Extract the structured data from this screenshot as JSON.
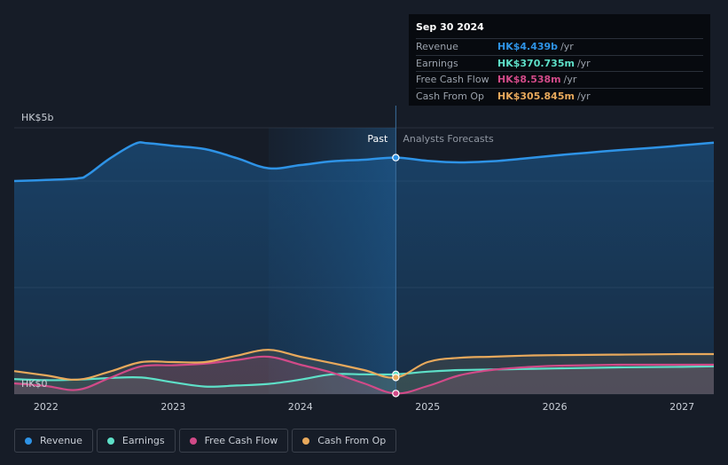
{
  "tooltip": {
    "date": "Sep 30 2024",
    "rows": [
      {
        "label": "Revenue",
        "value": "HK$4.439b",
        "unit": "/yr",
        "color": "#2e93e6"
      },
      {
        "label": "Earnings",
        "value": "HK$370.735m",
        "unit": "/yr",
        "color": "#5ee0c8"
      },
      {
        "label": "Free Cash Flow",
        "value": "HK$8.538m",
        "unit": "/yr",
        "color": "#d14a88"
      },
      {
        "label": "Cash From Op",
        "value": "HK$305.845m",
        "unit": "/yr",
        "color": "#e8a95c"
      }
    ]
  },
  "legend": [
    {
      "label": "Revenue",
      "color": "#2e93e6"
    },
    {
      "label": "Earnings",
      "color": "#5ee0c8"
    },
    {
      "label": "Free Cash Flow",
      "color": "#d14a88"
    },
    {
      "label": "Cash From Op",
      "color": "#e8a95c"
    }
  ],
  "chart_data": {
    "type": "line",
    "y_axis_labels": [
      "HK$5b",
      "HK$0"
    ],
    "ylim": [
      0,
      5
    ],
    "y_unit": "HK$ billions",
    "xlim": [
      2021.75,
      2027.25
    ],
    "x_ticks": [
      "2022",
      "2023",
      "2024",
      "2025",
      "2026",
      "2027"
    ],
    "period_labels": {
      "past": "Past",
      "forecast": "Analysts Forecasts"
    },
    "divider_x": 2024.75,
    "series": [
      {
        "name": "Revenue",
        "color": "#2e93e6",
        "x": [
          2021.75,
          2022.0,
          2022.25,
          2022.33,
          2022.5,
          2022.7,
          2022.8,
          2023.0,
          2023.25,
          2023.5,
          2023.75,
          2024.0,
          2024.25,
          2024.5,
          2024.75,
          2025.0,
          2025.25,
          2025.5,
          2025.75,
          2026.0,
          2026.25,
          2026.5,
          2026.75,
          2027.0,
          2027.25
        ],
        "y": [
          4.0,
          4.02,
          4.05,
          4.12,
          4.42,
          4.7,
          4.71,
          4.66,
          4.6,
          4.43,
          4.24,
          4.3,
          4.37,
          4.4,
          4.44,
          4.38,
          4.35,
          4.37,
          4.42,
          4.48,
          4.53,
          4.58,
          4.62,
          4.67,
          4.72
        ]
      },
      {
        "name": "Earnings",
        "color": "#5ee0c8",
        "x": [
          2021.75,
          2022.0,
          2022.25,
          2022.5,
          2022.75,
          2023.0,
          2023.25,
          2023.5,
          2023.75,
          2024.0,
          2024.25,
          2024.5,
          2024.75,
          2025.0,
          2025.25,
          2025.5,
          2025.75,
          2026.0,
          2026.5,
          2027.0,
          2027.25
        ],
        "y": [
          0.28,
          0.26,
          0.27,
          0.3,
          0.31,
          0.22,
          0.14,
          0.16,
          0.19,
          0.27,
          0.37,
          0.37,
          0.37,
          0.42,
          0.45,
          0.46,
          0.47,
          0.48,
          0.5,
          0.51,
          0.52
        ]
      },
      {
        "name": "Free Cash Flow",
        "color": "#d14a88",
        "x": [
          2021.75,
          2022.0,
          2022.25,
          2022.5,
          2022.75,
          2023.0,
          2023.25,
          2023.5,
          2023.75,
          2024.0,
          2024.25,
          2024.5,
          2024.75,
          2025.0,
          2025.25,
          2025.5,
          2025.75,
          2026.0,
          2026.5,
          2027.0,
          2027.25
        ],
        "y": [
          0.2,
          0.15,
          0.08,
          0.3,
          0.52,
          0.54,
          0.57,
          0.64,
          0.7,
          0.55,
          0.4,
          0.2,
          0.01,
          0.15,
          0.35,
          0.45,
          0.5,
          0.53,
          0.55,
          0.55,
          0.55
        ]
      },
      {
        "name": "Cash From Op",
        "color": "#e8a95c",
        "x": [
          2021.75,
          2022.0,
          2022.25,
          2022.5,
          2022.75,
          2023.0,
          2023.25,
          2023.5,
          2023.75,
          2024.0,
          2024.25,
          2024.5,
          2024.75,
          2025.0,
          2025.25,
          2025.5,
          2025.75,
          2026.0,
          2026.5,
          2027.0,
          2027.25
        ],
        "y": [
          0.43,
          0.35,
          0.27,
          0.42,
          0.6,
          0.6,
          0.6,
          0.72,
          0.83,
          0.7,
          0.58,
          0.45,
          0.31,
          0.6,
          0.68,
          0.7,
          0.72,
          0.73,
          0.74,
          0.75,
          0.75
        ]
      }
    ]
  }
}
